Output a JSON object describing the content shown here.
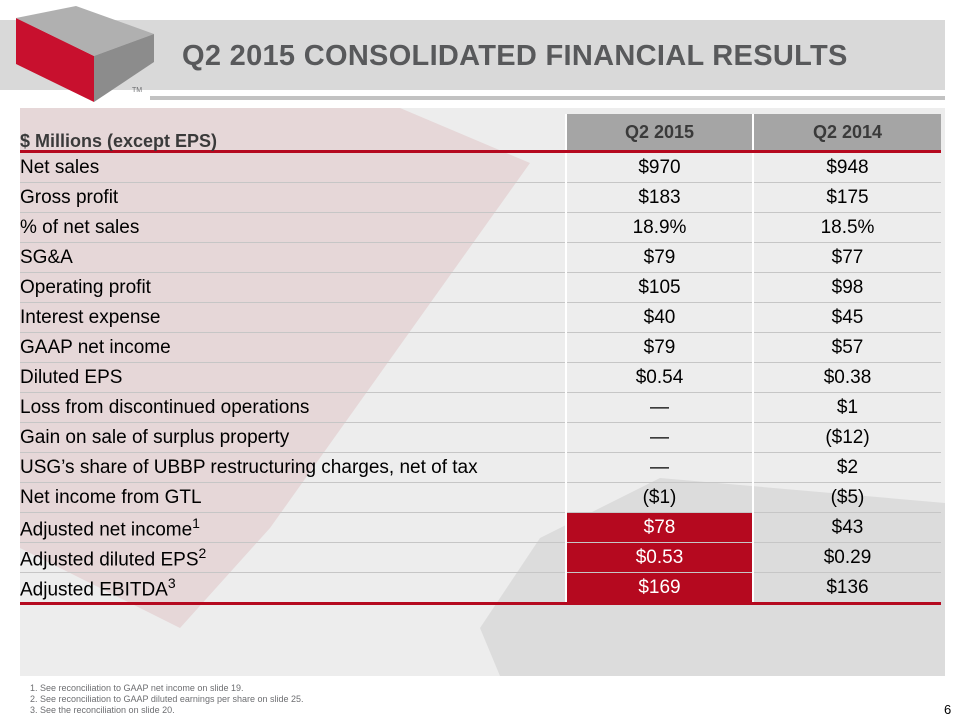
{
  "slide": {
    "title": "Q2 2015 CONSOLIDATED FINANCIAL RESULTS",
    "page_number": "6"
  },
  "logo": {
    "trademark": "TM",
    "colors": {
      "red": "#c8102e",
      "dark": "#6d6e71"
    }
  },
  "table": {
    "header_label": "$ Millions (except EPS)",
    "columns": [
      "Q2 2015",
      "Q2 2014"
    ],
    "rows": [
      {
        "label": "Net sales",
        "sup": "",
        "q2_2015": "$970",
        "q2_2014": "$948",
        "highlight": false
      },
      {
        "label": "Gross profit",
        "sup": "",
        "q2_2015": "$183",
        "q2_2014": "$175",
        "highlight": false
      },
      {
        "label": "% of net sales",
        "sup": "",
        "q2_2015": "18.9%",
        "q2_2014": "18.5%",
        "highlight": false
      },
      {
        "label": "SG&A",
        "sup": "",
        "q2_2015": "$79",
        "q2_2014": "$77",
        "highlight": false
      },
      {
        "label": "Operating profit",
        "sup": "",
        "q2_2015": "$105",
        "q2_2014": "$98",
        "highlight": false
      },
      {
        "label": "Interest expense",
        "sup": "",
        "q2_2015": "$40",
        "q2_2014": "$45",
        "highlight": false
      },
      {
        "label": "GAAP net income",
        "sup": "",
        "q2_2015": "$79",
        "q2_2014": "$57",
        "highlight": false
      },
      {
        "label": "Diluted EPS",
        "sup": "",
        "q2_2015": "$0.54",
        "q2_2014": "$0.38",
        "highlight": false
      },
      {
        "label": "Loss from discontinued operations",
        "sup": "",
        "q2_2015": "—",
        "q2_2014": "$1",
        "highlight": false
      },
      {
        "label": "Gain on sale of surplus property",
        "sup": "",
        "q2_2015": "—",
        "q2_2014": "($12)",
        "highlight": false
      },
      {
        "label": "USG’s share of UBBP restructuring charges, net of tax",
        "sup": "",
        "q2_2015": "—",
        "q2_2014": "$2",
        "highlight": false
      },
      {
        "label": "Net income from GTL",
        "sup": "",
        "q2_2015": "($1)",
        "q2_2014": "($5)",
        "highlight": false
      },
      {
        "label": "Adjusted net income",
        "sup": "1",
        "q2_2015": "$78",
        "q2_2014": "$43",
        "highlight": true
      },
      {
        "label": "Adjusted diluted EPS",
        "sup": "2",
        "q2_2015": "$0.53",
        "q2_2014": "$0.29",
        "highlight": true
      },
      {
        "label": "Adjusted EBITDA",
        "sup": "3",
        "q2_2015": "$169",
        "q2_2014": "$136",
        "highlight": true
      }
    ]
  },
  "footnotes": [
    "1. See reconciliation to GAAP net income on slide 19.",
    "2. See reconciliation to GAAP diluted earnings per share on slide 25.",
    "3. See the reconciliation on slide 20."
  ],
  "colors": {
    "accent": "#b5091f",
    "header_gray": "#a5a5a5",
    "band_gray": "#d9d9d9",
    "title_gray": "#58595b"
  }
}
